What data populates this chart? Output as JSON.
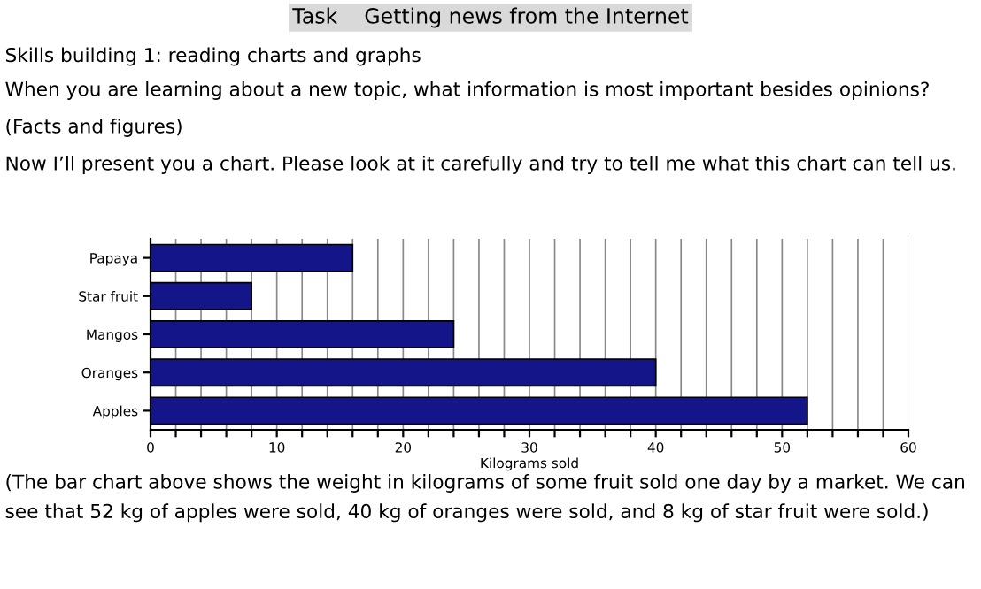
{
  "chart_data": {
    "type": "bar",
    "orientation": "horizontal",
    "title": "Task    Getting news from the Internet",
    "subtitle": "Skills building 1: reading charts and graphs",
    "annotations": [
      "When you are learning about a new topic, what information is most important besides opinions?",
      "(Facts and figures)",
      "Now I’ll present you a chart. Please look at it carefully and try to tell me what this chart can tell us.",
      "(The bar chart above shows the weight in kilograms of some fruit sold one day by a market. We can see that 52 kg of apples were sold, 40 kg of oranges were sold, and 8 kg of star fruit were sold.)"
    ],
    "categories": [
      "Papaya",
      "Star fruit",
      "Mangos",
      "Oranges",
      "Apples"
    ],
    "values": [
      16,
      8,
      24,
      40,
      52
    ],
    "color": "#15158a",
    "xlabel": "Kilograms sold",
    "xlim": [
      0,
      60
    ],
    "xticks": [
      0,
      {
        "value": 2,
        "label": null
      },
      {
        "value": 4,
        "label": null
      },
      {
        "value": 6,
        "label": null
      },
      {
        "value": 8,
        "label": null
      },
      10,
      {
        "value": 12,
        "label": null
      },
      {
        "value": 14,
        "label": null
      },
      {
        "value": 16,
        "label": null
      },
      {
        "value": 18,
        "label": null
      },
      20,
      {
        "value": 22,
        "label": null
      },
      {
        "value": 24,
        "label": null
      },
      {
        "value": 26,
        "label": null
      },
      {
        "value": 28,
        "label": null
      },
      30,
      {
        "value": 32,
        "label": null
      },
      {
        "value": 34,
        "label": null
      },
      {
        "value": 36,
        "label": null
      },
      {
        "value": 38,
        "label": null
      },
      40,
      {
        "value": 42,
        "label": null
      },
      {
        "value": 44,
        "label": null
      },
      {
        "value": 46,
        "label": null
      },
      {
        "value": 48,
        "label": null
      },
      50,
      {
        "value": 52,
        "label": null
      },
      {
        "value": 54,
        "label": null
      },
      {
        "value": 56,
        "label": null
      },
      {
        "value": 58,
        "label": null
      },
      60
    ],
    "grid": "x"
  }
}
